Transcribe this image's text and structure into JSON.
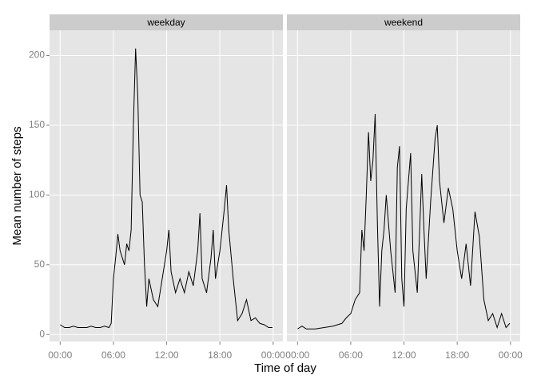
{
  "chart_data": [
    {
      "type": "line",
      "title": "weekday",
      "x_label": "Time of day",
      "y_label": "Mean number of steps",
      "color": "#000000",
      "grid": true,
      "xlim": [
        -1.2,
        25.1
      ],
      "ylim": [
        -5,
        218
      ],
      "xticks": [
        {
          "value": 0,
          "label": "00:00"
        },
        {
          "value": 6,
          "label": "06:00"
        },
        {
          "value": 12,
          "label": "12:00"
        },
        {
          "value": 18,
          "label": "18:00"
        },
        {
          "value": 24,
          "label": "00:00"
        }
      ],
      "yticks": [
        0,
        50,
        100,
        150,
        200
      ],
      "x": [
        0,
        0.5,
        1,
        1.5,
        2,
        2.5,
        3,
        3.5,
        4,
        4.5,
        5,
        5.5,
        5.75,
        6,
        6.25,
        6.5,
        6.75,
        7,
        7.25,
        7.5,
        7.75,
        8,
        8.25,
        8.5,
        8.75,
        9,
        9.25,
        9.5,
        9.75,
        10,
        10.5,
        11,
        11.5,
        12,
        12.25,
        12.5,
        13,
        13.5,
        14,
        14.5,
        15,
        15.5,
        15.75,
        16,
        16.5,
        17,
        17.25,
        17.5,
        18,
        18.5,
        18.75,
        19,
        19.5,
        20,
        20.5,
        21,
        21.5,
        22,
        22.5,
        23,
        23.5,
        23.92
      ],
      "values": [
        7,
        5,
        5,
        6,
        5,
        5,
        5,
        6,
        5,
        5,
        6,
        5,
        8,
        40,
        55,
        72,
        60,
        55,
        50,
        65,
        60,
        75,
        150,
        205,
        170,
        100,
        95,
        50,
        20,
        40,
        25,
        20,
        40,
        60,
        75,
        45,
        30,
        40,
        30,
        45,
        35,
        60,
        87,
        40,
        30,
        55,
        75,
        40,
        60,
        90,
        107,
        75,
        40,
        10,
        15,
        25,
        10,
        12,
        8,
        7,
        5,
        5
      ]
    },
    {
      "type": "line",
      "title": "weekend",
      "color": "#000000",
      "grid": true,
      "xlim": [
        -1.2,
        25.1
      ],
      "ylim": [
        -5,
        218
      ],
      "xticks": [
        {
          "value": 0,
          "label": "00:00"
        },
        {
          "value": 6,
          "label": "06:00"
        },
        {
          "value": 12,
          "label": "12:00"
        },
        {
          "value": 18,
          "label": "18:00"
        },
        {
          "value": 24,
          "label": "00:00"
        }
      ],
      "yticks": [
        0,
        50,
        100,
        150,
        200
      ],
      "x": [
        0,
        0.5,
        1,
        2,
        3,
        4,
        5,
        5.5,
        6,
        6.5,
        7,
        7.25,
        7.5,
        7.75,
        8,
        8.25,
        8.5,
        8.75,
        9,
        9.25,
        9.5,
        9.75,
        10,
        10.5,
        11,
        11.25,
        11.5,
        11.75,
        12,
        12.25,
        12.5,
        12.75,
        13,
        13.5,
        14,
        14.25,
        14.5,
        15,
        15.5,
        15.75,
        16,
        16.5,
        17,
        17.5,
        18,
        18.5,
        19,
        19.5,
        20,
        20.5,
        21,
        21.5,
        22,
        22.5,
        23,
        23.5,
        23.92
      ],
      "values": [
        4,
        6,
        4,
        4,
        5,
        6,
        8,
        12,
        15,
        25,
        30,
        75,
        60,
        100,
        145,
        110,
        125,
        158,
        80,
        20,
        60,
        75,
        100,
        60,
        30,
        120,
        135,
        40,
        20,
        90,
        110,
        130,
        60,
        30,
        115,
        75,
        40,
        95,
        140,
        150,
        110,
        80,
        105,
        90,
        60,
        40,
        65,
        35,
        88,
        70,
        25,
        10,
        15,
        5,
        15,
        5,
        8
      ]
    }
  ]
}
